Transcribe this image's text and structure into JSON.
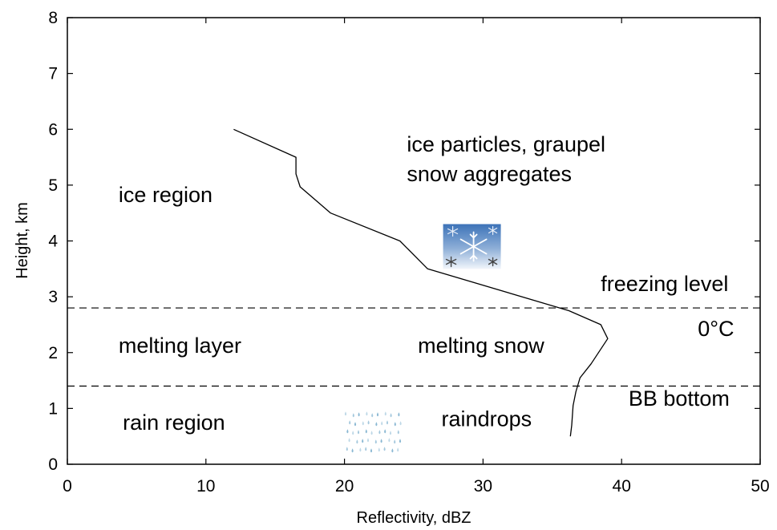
{
  "chart_data": {
    "type": "line",
    "xlabel": "Reflectivity, dBZ",
    "ylabel": "Height, km",
    "xlim": [
      0,
      50
    ],
    "ylim": [
      0,
      8
    ],
    "xticks": [
      "0",
      "10",
      "20",
      "30",
      "40",
      "50"
    ],
    "yticks": [
      "0",
      "1",
      "2",
      "3",
      "4",
      "5",
      "6",
      "7",
      "8"
    ],
    "grid": false,
    "series": [
      {
        "x": [
          12,
          16.5,
          16.5,
          16.8,
          19,
          24,
          26,
          36.2,
          38.5,
          39,
          37.8,
          37,
          36.7,
          36.5,
          36.4,
          36.3
        ],
        "y": [
          6.0,
          5.5,
          5.2,
          4.97,
          4.5,
          4.0,
          3.5,
          2.75,
          2.5,
          2.25,
          1.8,
          1.55,
          1.3,
          1.05,
          0.7,
          0.5
        ]
      }
    ],
    "reference_lines": [
      {
        "y": 2.8,
        "style": "dashed"
      },
      {
        "y": 1.4,
        "style": "dashed"
      }
    ],
    "annotations": [
      {
        "text": "ice region",
        "x": 3.7,
        "y": 4.7
      },
      {
        "text": "ice particles, graupel",
        "x": 24.5,
        "y": 5.6
      },
      {
        "text": "snow aggregates",
        "x": 24.5,
        "y": 5.07
      },
      {
        "text": "freezing level",
        "x": 38.5,
        "y": 3.1
      },
      {
        "text": "0°C",
        "x": 45.5,
        "y": 2.3
      },
      {
        "text": "melting layer",
        "x": 3.7,
        "y": 2.0
      },
      {
        "text": "melting snow",
        "x": 25.3,
        "y": 2.0
      },
      {
        "text": "BB bottom",
        "x": 40.5,
        "y": 1.05
      },
      {
        "text": "rain region",
        "x": 4.0,
        "y": 0.62
      },
      {
        "text": "raindrops",
        "x": 27.0,
        "y": 0.68
      }
    ],
    "images": [
      {
        "icon": "snowflake-icon",
        "x": 29.2,
        "y": 3.9
      },
      {
        "icon": "raindrops-icon",
        "x": 22.0,
        "y": 0.6
      }
    ]
  }
}
